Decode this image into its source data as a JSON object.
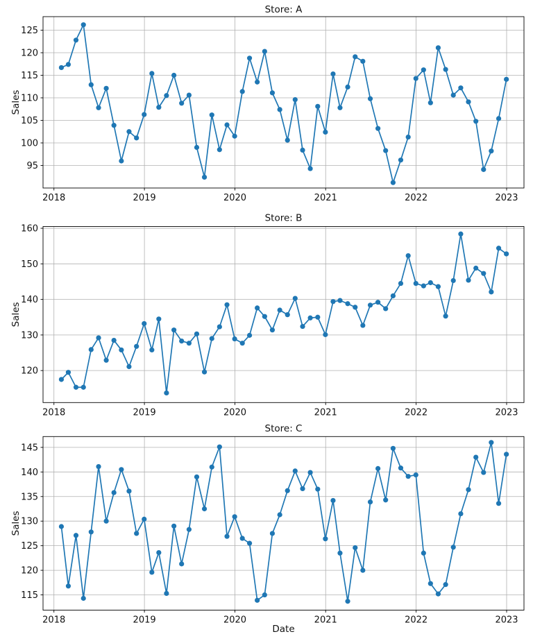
{
  "figure": {
    "xlabel": "Date",
    "background": "#ffffff"
  },
  "style": {
    "line_color": "#1f77b4",
    "marker": "circle",
    "marker_radius": 3.6,
    "line_width": 1.7,
    "grid_color": "#b0b0b0",
    "grid_width": 0.8,
    "spine_color": "#000000",
    "spine_width": 0.9,
    "text_color": "#111111"
  },
  "x_axis": {
    "tick_labels": [
      "2018",
      "2019",
      "2020",
      "2021",
      "2022",
      "2023"
    ],
    "tick_days": [
      0,
      365,
      730,
      1096,
      1461,
      1826
    ],
    "domain_days": [
      -44,
      1896
    ],
    "months": [
      "2018-01",
      "2018-02",
      "2018-03",
      "2018-04",
      "2018-05",
      "2018-06",
      "2018-07",
      "2018-08",
      "2018-09",
      "2018-10",
      "2018-11",
      "2018-12",
      "2019-01",
      "2019-02",
      "2019-03",
      "2019-04",
      "2019-05",
      "2019-06",
      "2019-07",
      "2019-08",
      "2019-09",
      "2019-10",
      "2019-11",
      "2019-12",
      "2020-01",
      "2020-02",
      "2020-03",
      "2020-04",
      "2020-05",
      "2020-06",
      "2020-07",
      "2020-08",
      "2020-09",
      "2020-10",
      "2020-11",
      "2020-12",
      "2021-01",
      "2021-02",
      "2021-03",
      "2021-04",
      "2021-05",
      "2021-06",
      "2021-07",
      "2021-08",
      "2021-09",
      "2021-10",
      "2021-11",
      "2021-12",
      "2022-01",
      "2022-02",
      "2022-03",
      "2022-04",
      "2022-05",
      "2022-06",
      "2022-07",
      "2022-08",
      "2022-09",
      "2022-10",
      "2022-11",
      "2022-12"
    ],
    "month_end_days": [
      30,
      58,
      89,
      119,
      150,
      180,
      211,
      242,
      272,
      303,
      333,
      364,
      395,
      423,
      454,
      484,
      515,
      545,
      576,
      607,
      637,
      668,
      698,
      729,
      760,
      789,
      820,
      850,
      881,
      911,
      942,
      973,
      1003,
      1034,
      1064,
      1095,
      1126,
      1154,
      1185,
      1215,
      1246,
      1276,
      1307,
      1338,
      1368,
      1399,
      1429,
      1460,
      1491,
      1519,
      1550,
      1580,
      1611,
      1641,
      1672,
      1702,
      1733,
      1764,
      1794,
      1825
    ]
  },
  "chart_data": [
    {
      "type": "line",
      "title": "Store: A",
      "ylabel": "Sales",
      "grid": true,
      "legend": "none",
      "ylim": [
        90.0,
        128.0
      ],
      "yticks": [
        95,
        100,
        105,
        110,
        115,
        120,
        125
      ],
      "values": [
        116.7,
        117.4,
        122.8,
        126.2,
        112.9,
        107.8,
        112.1,
        103.9,
        96.0,
        102.5,
        101.1,
        106.3,
        115.4,
        107.9,
        110.5,
        115.0,
        108.8,
        110.6,
        99.0,
        92.4,
        106.2,
        98.5,
        104.0,
        101.5,
        111.4,
        118.8,
        113.5,
        120.3,
        111.1,
        107.4,
        100.6,
        109.6,
        98.4,
        94.3,
        108.1,
        102.4,
        115.3,
        107.8,
        112.4,
        119.1,
        118.1,
        109.8,
        103.2,
        98.3,
        91.2,
        96.2,
        101.3,
        114.3,
        116.2,
        108.9,
        121.1,
        116.3,
        110.6,
        112.2,
        109.1,
        104.8,
        94.1,
        98.2,
        105.4,
        114.1
      ]
    },
    {
      "type": "line",
      "title": "Store: B",
      "ylabel": "Sales",
      "grid": true,
      "legend": "none",
      "ylim": [
        111.0,
        160.5
      ],
      "yticks": [
        120,
        130,
        140,
        150,
        160
      ],
      "values": [
        117.5,
        119.5,
        115.3,
        115.3,
        125.9,
        129.2,
        122.9,
        128.5,
        125.8,
        121.1,
        126.8,
        133.2,
        125.8,
        134.5,
        113.7,
        131.4,
        128.3,
        127.7,
        130.3,
        119.6,
        129.0,
        132.3,
        138.5,
        128.9,
        127.7,
        129.9,
        137.6,
        135.2,
        131.4,
        137.0,
        135.7,
        140.3,
        132.4,
        134.8,
        135.0,
        130.1,
        139.4,
        139.7,
        138.8,
        137.8,
        132.7,
        138.4,
        139.2,
        137.4,
        141.0,
        144.5,
        152.3,
        144.5,
        143.8,
        144.7,
        143.6,
        135.3,
        145.3,
        158.4,
        145.4,
        148.8,
        147.3,
        142.1,
        154.4,
        152.8
      ]
    },
    {
      "type": "line",
      "title": "Store: C",
      "ylabel": "Sales",
      "grid": true,
      "legend": "none",
      "ylim": [
        111.9,
        147.2
      ],
      "yticks": [
        115,
        120,
        125,
        130,
        135,
        140,
        145
      ],
      "values": [
        128.9,
        116.8,
        127.1,
        114.3,
        127.8,
        141.1,
        130.0,
        135.8,
        140.5,
        136.1,
        127.5,
        130.4,
        119.6,
        123.6,
        115.3,
        129.0,
        121.3,
        128.3,
        139.0,
        132.5,
        141.0,
        145.1,
        126.9,
        130.9,
        126.5,
        125.5,
        113.9,
        115.0,
        127.5,
        131.3,
        136.2,
        140.2,
        136.6,
        139.9,
        136.5,
        126.4,
        134.2,
        123.5,
        113.7,
        124.6,
        120.0,
        133.9,
        140.7,
        134.3,
        144.8,
        140.8,
        139.1,
        139.4,
        123.5,
        117.3,
        115.2,
        117.1,
        124.7,
        131.5,
        136.4,
        143.0,
        139.9,
        146.0,
        133.6,
        143.6
      ]
    }
  ]
}
